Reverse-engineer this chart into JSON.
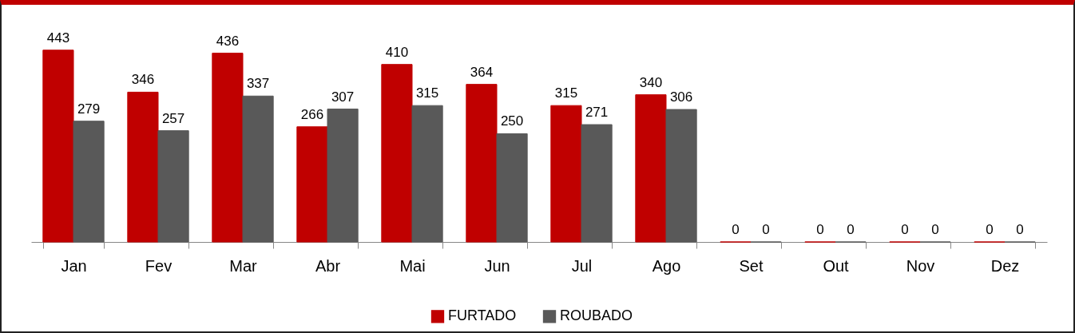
{
  "chart_data": {
    "type": "bar",
    "categories": [
      "Jan",
      "Fev",
      "Mar",
      "Abr",
      "Mai",
      "Jun",
      "Jul",
      "Ago",
      "Set",
      "Out",
      "Nov",
      "Dez"
    ],
    "series": [
      {
        "name": "FURTADO",
        "color": "#c00000",
        "values": [
          443,
          346,
          436,
          266,
          410,
          364,
          315,
          340,
          0,
          0,
          0,
          0
        ]
      },
      {
        "name": "ROUBADO",
        "color": "#595959",
        "values": [
          279,
          257,
          337,
          307,
          315,
          250,
          271,
          306,
          0,
          0,
          0,
          0
        ]
      }
    ],
    "data_labels": true,
    "legend": "bottom",
    "grid": false
  }
}
